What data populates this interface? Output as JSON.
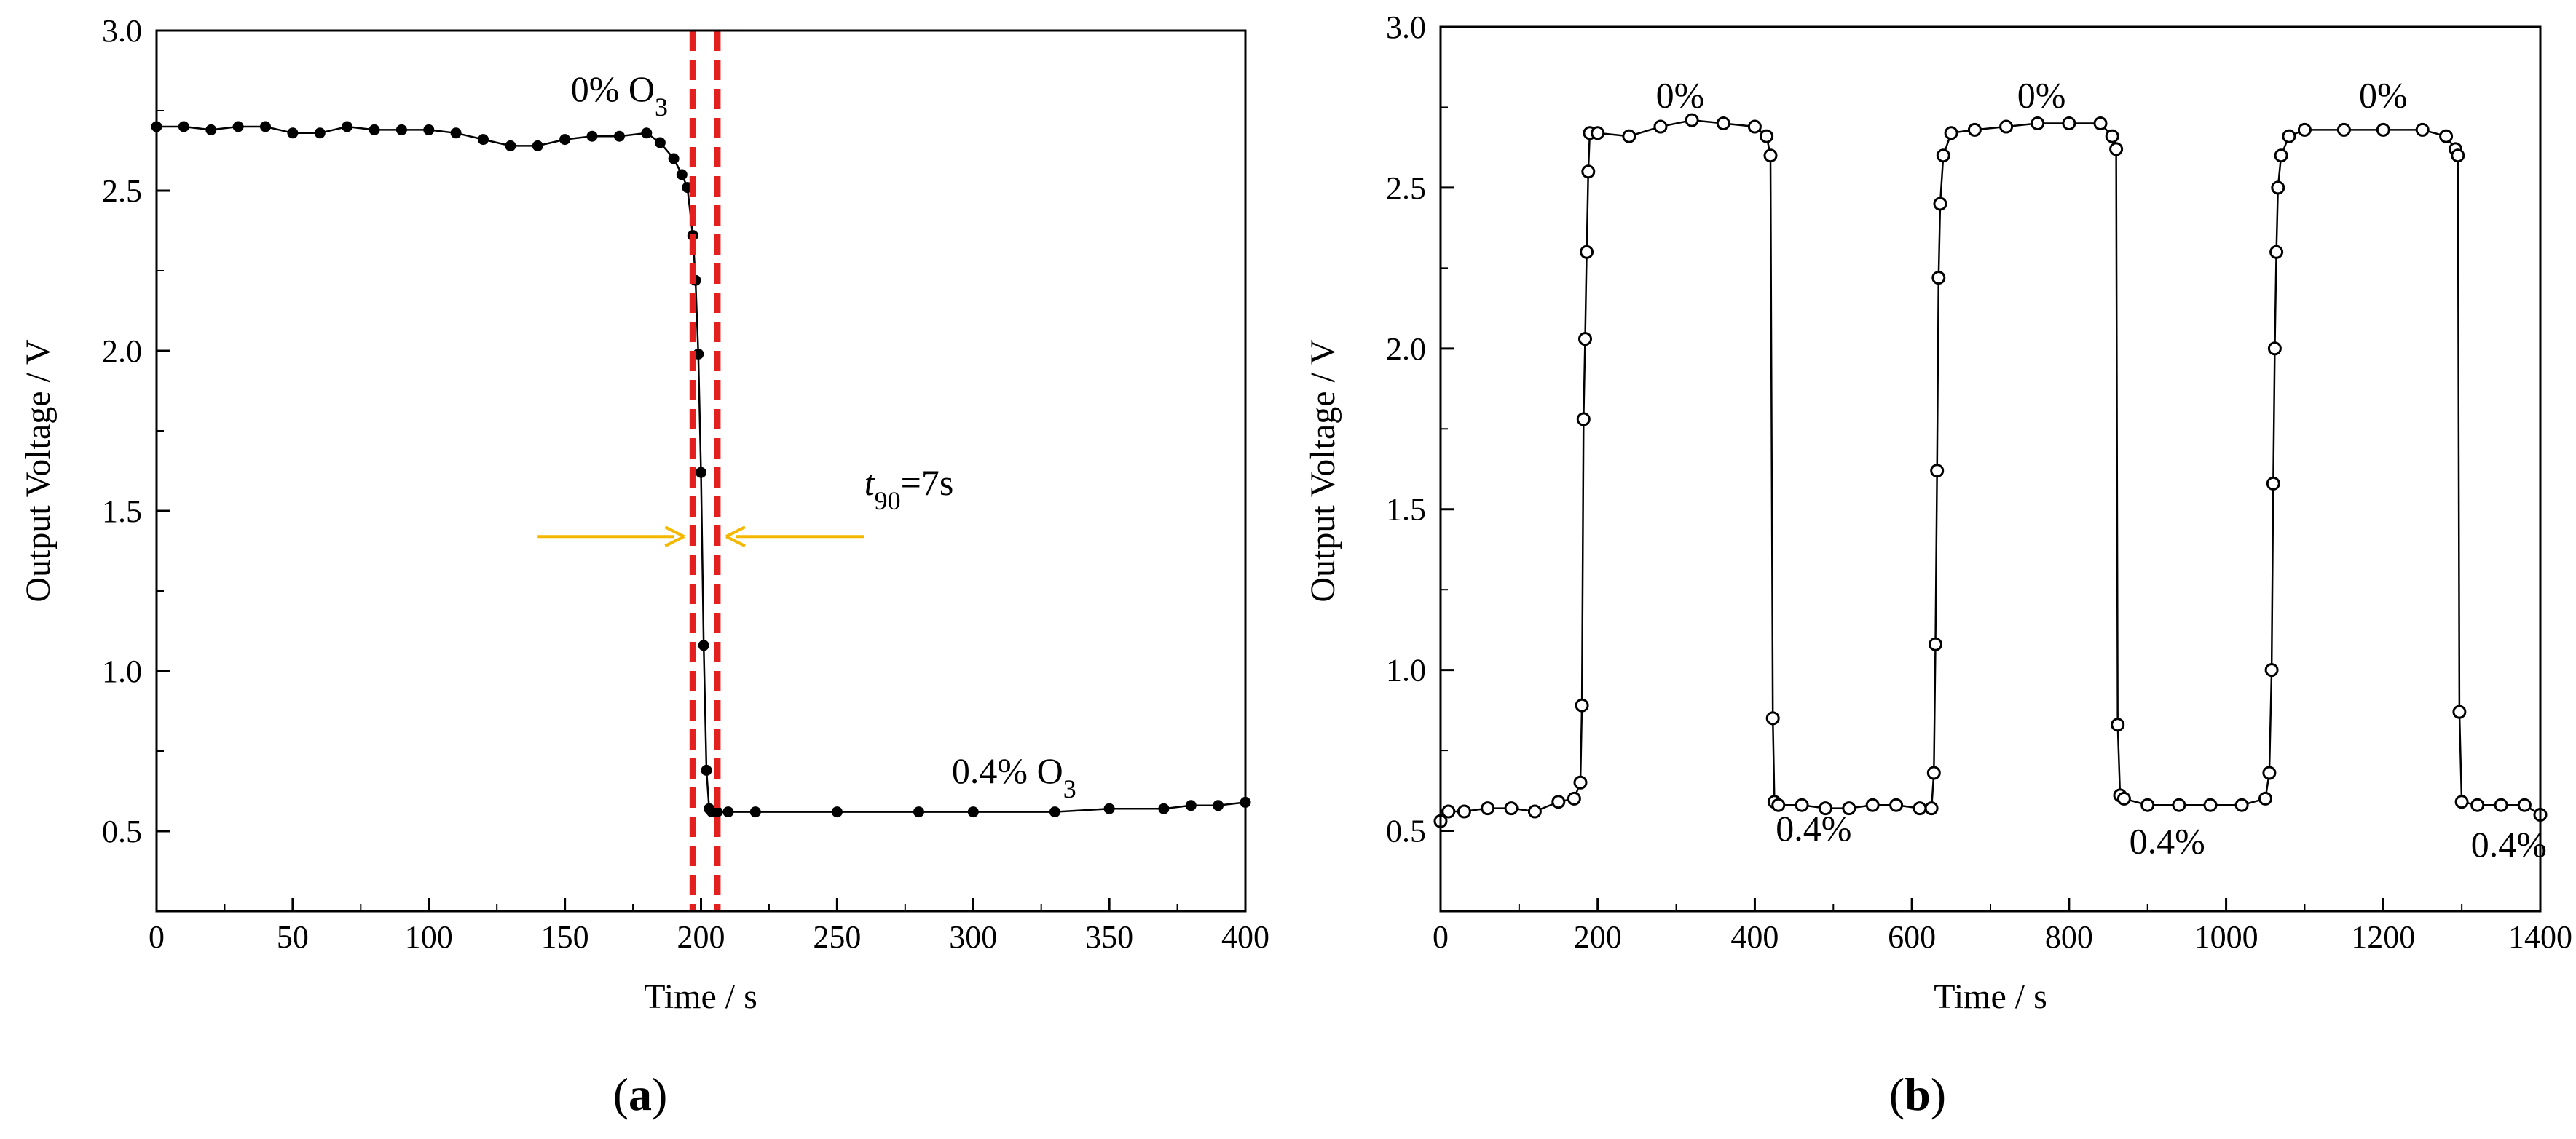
{
  "figure": {
    "panels": [
      "(a)",
      "(b)"
    ],
    "panel_label_parts": [
      {
        "open": "(",
        "letter": "a",
        "close": ")"
      },
      {
        "open": "(",
        "letter": "b",
        "close": ")"
      }
    ]
  },
  "chart_data": [
    {
      "type": "scatter",
      "panel": "(a)",
      "xlabel": "Time / s",
      "ylabel": "Output Voltage / V",
      "xlim": [
        0,
        400
      ],
      "ylim": [
        0.25,
        3.0
      ],
      "xticks": [
        0,
        50,
        100,
        150,
        200,
        250,
        300,
        350,
        400
      ],
      "yticks": [
        0.5,
        1.0,
        1.5,
        2.0,
        2.5,
        3.0
      ],
      "xtick_labels": [
        "0",
        "50",
        "100",
        "150",
        "200",
        "250",
        "300",
        "350",
        "400"
      ],
      "ytick_labels": [
        "0.5",
        "1.0",
        "1.5",
        "2.0",
        "2.5",
        "3.0"
      ],
      "grid": false,
      "series": [
        {
          "name": "Output voltage",
          "color": "#000000",
          "x": [
            0,
            10,
            20,
            30,
            40,
            50,
            60,
            70,
            80,
            90,
            100,
            110,
            120,
            130,
            140,
            150,
            160,
            170,
            180,
            185,
            190,
            193,
            195,
            197,
            198,
            199,
            200,
            201,
            202,
            203,
            204,
            205,
            206,
            210,
            220,
            250,
            280,
            300,
            330,
            350,
            370,
            380,
            390,
            400
          ],
          "y": [
            2.7,
            2.7,
            2.69,
            2.7,
            2.7,
            2.68,
            2.68,
            2.7,
            2.69,
            2.69,
            2.69,
            2.68,
            2.66,
            2.64,
            2.64,
            2.66,
            2.67,
            2.67,
            2.68,
            2.65,
            2.6,
            2.55,
            2.51,
            2.36,
            2.22,
            1.99,
            1.62,
            1.08,
            0.69,
            0.57,
            0.56,
            0.56,
            0.56,
            0.56,
            0.56,
            0.56,
            0.56,
            0.56,
            0.56,
            0.57,
            0.57,
            0.58,
            0.58,
            0.59
          ]
        }
      ],
      "markers": [
        {
          "x": 197,
          "label": "onset line",
          "color": "#e4201f"
        },
        {
          "x": 206,
          "label": "end line",
          "color": "#e4201f"
        }
      ],
      "annotations": {
        "top": {
          "text": "0% O",
          "sub": "3",
          "x": 170,
          "y": 2.78
        },
        "bottom": {
          "text": "0.4% O",
          "sub": "3",
          "x": 315,
          "y": 0.65
        },
        "t90": {
          "t": "t",
          "sub": "90",
          "rest": "=7s",
          "x": 260,
          "y": 1.55,
          "arrow_color": "#f5b800",
          "left_arrow_from": 140,
          "right_arrow_from": 260,
          "arrow_y": 1.42
        }
      }
    },
    {
      "type": "scatter",
      "panel": "(b)",
      "xlabel": "Time / s",
      "ylabel": "Output Voltage / V",
      "xlim": [
        0,
        1400
      ],
      "ylim": [
        0.25,
        3.0
      ],
      "xticks": [
        0,
        200,
        400,
        600,
        800,
        1000,
        1200,
        1400
      ],
      "yticks": [
        0.5,
        1.0,
        1.5,
        2.0,
        2.5,
        3.0
      ],
      "xtick_labels": [
        "0",
        "200",
        "400",
        "600",
        "800",
        "1000",
        "1200",
        "1400"
      ],
      "ytick_labels": [
        "0.5",
        "1.0",
        "1.5",
        "2.0",
        "2.5",
        "3.0"
      ],
      "grid": false,
      "series": [
        {
          "name": "Output voltage",
          "color": "#000000",
          "x": [
            0,
            10,
            30,
            60,
            90,
            120,
            150,
            170,
            178,
            180,
            182,
            184,
            186,
            188,
            190,
            200,
            240,
            280,
            320,
            360,
            400,
            415,
            420,
            423,
            425,
            430,
            460,
            490,
            520,
            550,
            580,
            610,
            625,
            628,
            630,
            632,
            634,
            636,
            640,
            650,
            680,
            720,
            760,
            800,
            840,
            855,
            860,
            862,
            865,
            870,
            900,
            940,
            980,
            1020,
            1050,
            1055,
            1058,
            1060,
            1062,
            1064,
            1066,
            1070,
            1080,
            1100,
            1150,
            1200,
            1250,
            1280,
            1292,
            1295,
            1297,
            1300,
            1320,
            1350,
            1380,
            1400
          ],
          "y": [
            0.53,
            0.56,
            0.56,
            0.57,
            0.57,
            0.56,
            0.59,
            0.6,
            0.65,
            0.89,
            1.78,
            2.03,
            2.3,
            2.55,
            2.67,
            2.67,
            2.66,
            2.69,
            2.71,
            2.7,
            2.69,
            2.66,
            2.6,
            0.85,
            0.59,
            0.58,
            0.58,
            0.57,
            0.57,
            0.58,
            0.58,
            0.57,
            0.57,
            0.68,
            1.08,
            1.62,
            2.22,
            2.45,
            2.6,
            2.67,
            2.68,
            2.69,
            2.7,
            2.7,
            2.7,
            2.66,
            2.62,
            0.83,
            0.61,
            0.6,
            0.58,
            0.58,
            0.58,
            0.58,
            0.6,
            0.68,
            1.0,
            1.58,
            2.0,
            2.3,
            2.5,
            2.6,
            2.66,
            2.68,
            2.68,
            2.68,
            2.68,
            2.66,
            2.62,
            2.6,
            0.87,
            0.59,
            0.58,
            0.58,
            0.58,
            0.55
          ]
        }
      ],
      "annotations": [
        {
          "text": "0%",
          "x": 305,
          "y": 2.75
        },
        {
          "text": "0%",
          "x": 765,
          "y": 2.75
        },
        {
          "text": "0%",
          "x": 1200,
          "y": 2.75
        },
        {
          "text": "0.4%",
          "x": 475,
          "y": 0.47
        },
        {
          "text": "0.4%",
          "x": 925,
          "y": 0.43
        },
        {
          "text": "0.4%",
          "x": 1360,
          "y": 0.42
        }
      ]
    }
  ]
}
